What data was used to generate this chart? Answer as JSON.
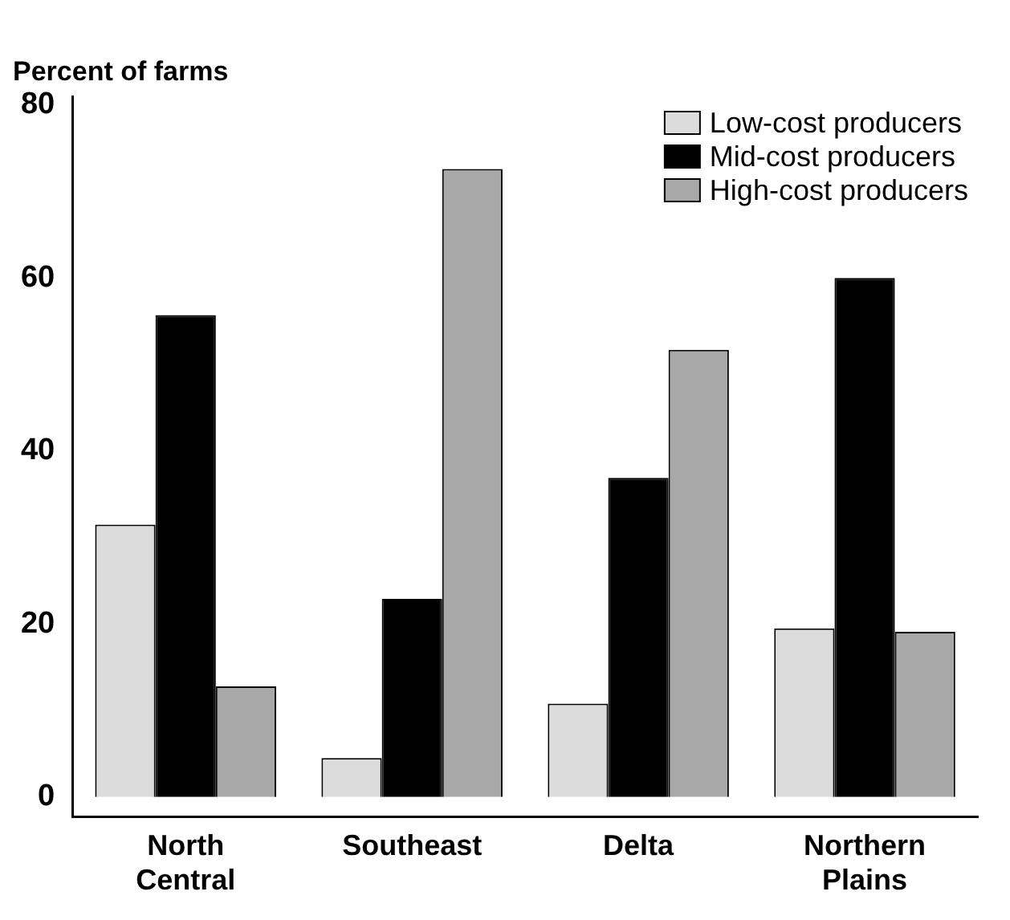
{
  "chart_data": {
    "type": "bar",
    "ylabel": "Percent of farms",
    "categories": [
      "North\nCentral",
      "Southeast",
      "Delta",
      "Northern\nPlains"
    ],
    "series": [
      {
        "name": "Low-cost producers",
        "color": "#dcdcdc",
        "values": [
          31.5,
          4.5,
          10.8,
          19.5
        ]
      },
      {
        "name": "Mid-cost producers",
        "color": "#000000",
        "values": [
          55.7,
          22.9,
          36.9,
          60
        ]
      },
      {
        "name": "High-cost producers",
        "color": "#a8a8a8",
        "values": [
          12.8,
          72.6,
          51.7,
          19.1
        ]
      }
    ],
    "ylim": [
      -2.3,
      81
    ],
    "yticks": [
      0,
      20,
      40,
      60,
      80
    ],
    "grid": false,
    "legend": "top right"
  }
}
